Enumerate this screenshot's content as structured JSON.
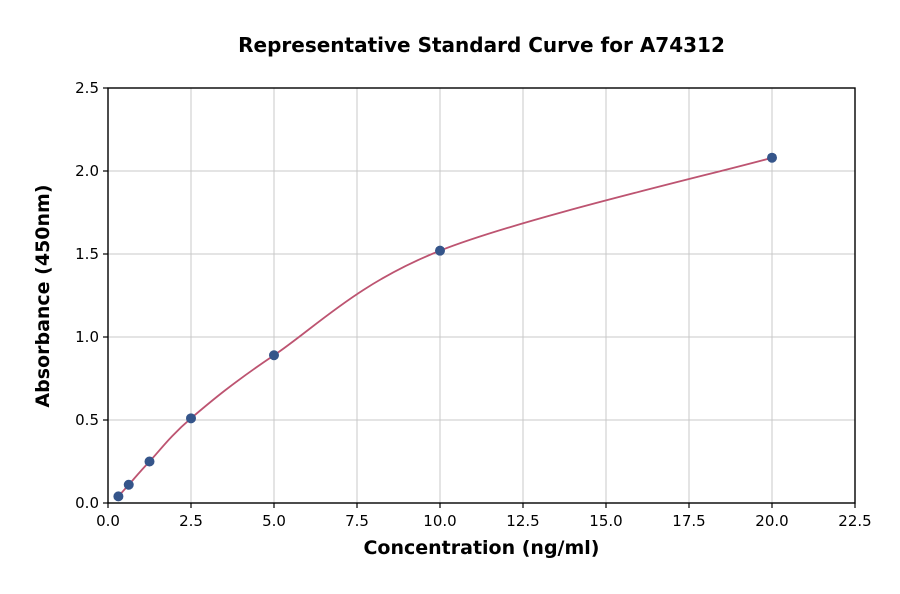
{
  "chart_data": {
    "type": "scatter",
    "title": "Representative Standard Curve for A74312",
    "xlabel": "Concentration (ng/ml)",
    "ylabel": "Absorbance (450nm)",
    "xlim": [
      0,
      22.5
    ],
    "ylim": [
      0,
      2.5
    ],
    "grid": true,
    "legend": "none",
    "x_ticks": {
      "values": [
        0,
        2.5,
        5,
        7.5,
        10,
        12.5,
        15,
        17.5,
        20,
        22.5
      ],
      "labels": [
        "0.0",
        "2.5",
        "5.0",
        "7.5",
        "10.0",
        "12.5",
        "15.0",
        "17.5",
        "20.0",
        "22.5"
      ]
    },
    "y_ticks": {
      "values": [
        0,
        0.5,
        1,
        1.5,
        2,
        2.5
      ],
      "labels": [
        "0.0",
        "0.5",
        "1.0",
        "1.5",
        "2.0",
        "2.5"
      ]
    },
    "points": {
      "x": [
        0.313,
        0.625,
        1.25,
        2.5,
        5,
        10,
        20
      ],
      "y": [
        0.04,
        0.11,
        0.25,
        0.51,
        0.89,
        1.52,
        2.08
      ]
    },
    "colors": {
      "curve": "#bd5471",
      "points": "#35558a",
      "grid": "#c8c8c8",
      "spine": "#000000"
    }
  }
}
